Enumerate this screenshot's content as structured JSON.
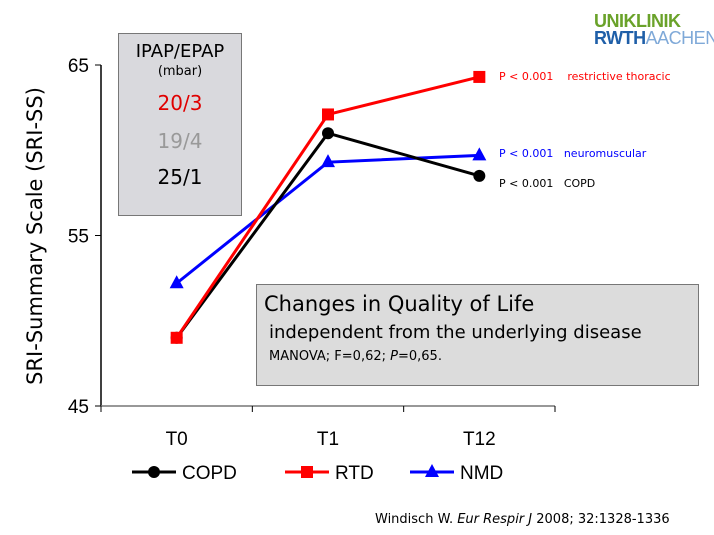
{
  "logo": {
    "line1": "UNIKLINIK",
    "line2a": "RWTH",
    "line2b": "AACHEN"
  },
  "ipap_box": {
    "title": "IPAP/EPAP",
    "unit": "(mbar)",
    "values": [
      {
        "text": "20/3",
        "color": "#e00000"
      },
      {
        "text": "19/4",
        "color": "#999999"
      },
      {
        "text": "25/1",
        "color": "#000000"
      }
    ]
  },
  "note": {
    "title": "Changes in Quality of Life",
    "subtitle": "independent from the underlying disease",
    "stats_prefix": "MANOVA;  F=0,62; ",
    "stats_p": "P",
    "stats_suffix": "=0,65."
  },
  "annotations": [
    {
      "text": "P < 0.001    restrictive thoracic",
      "color": "#ff0000"
    },
    {
      "text": "P < 0.001   neuromuscular",
      "color": "#0000ff"
    },
    {
      "text": "P < 0.001   COPD",
      "color": "#000000"
    }
  ],
  "citation": {
    "prefix": "Windisch W. ",
    "journal": "Eur Respir J",
    "suffix": " 2008; 32:1328-1336"
  },
  "chart_data": {
    "type": "line",
    "ylabel": "SRI-Summary Scale (SRI-SS)",
    "xlabel": "",
    "categories": [
      "T0",
      "T1",
      "T12"
    ],
    "ylim": [
      45,
      65
    ],
    "yticks": [
      "45",
      "55",
      "65"
    ],
    "legend_position": "bottom",
    "series": [
      {
        "name": "COPD",
        "color": "#000000",
        "marker": "circle",
        "values": [
          49.0,
          61.0,
          58.5
        ]
      },
      {
        "name": "RTD",
        "color": "#ff0000",
        "marker": "square",
        "values": [
          49.0,
          62.1,
          64.3
        ]
      },
      {
        "name": "NMD",
        "color": "#0000ff",
        "marker": "triangle",
        "values": [
          52.2,
          59.3,
          59.7
        ]
      }
    ]
  }
}
